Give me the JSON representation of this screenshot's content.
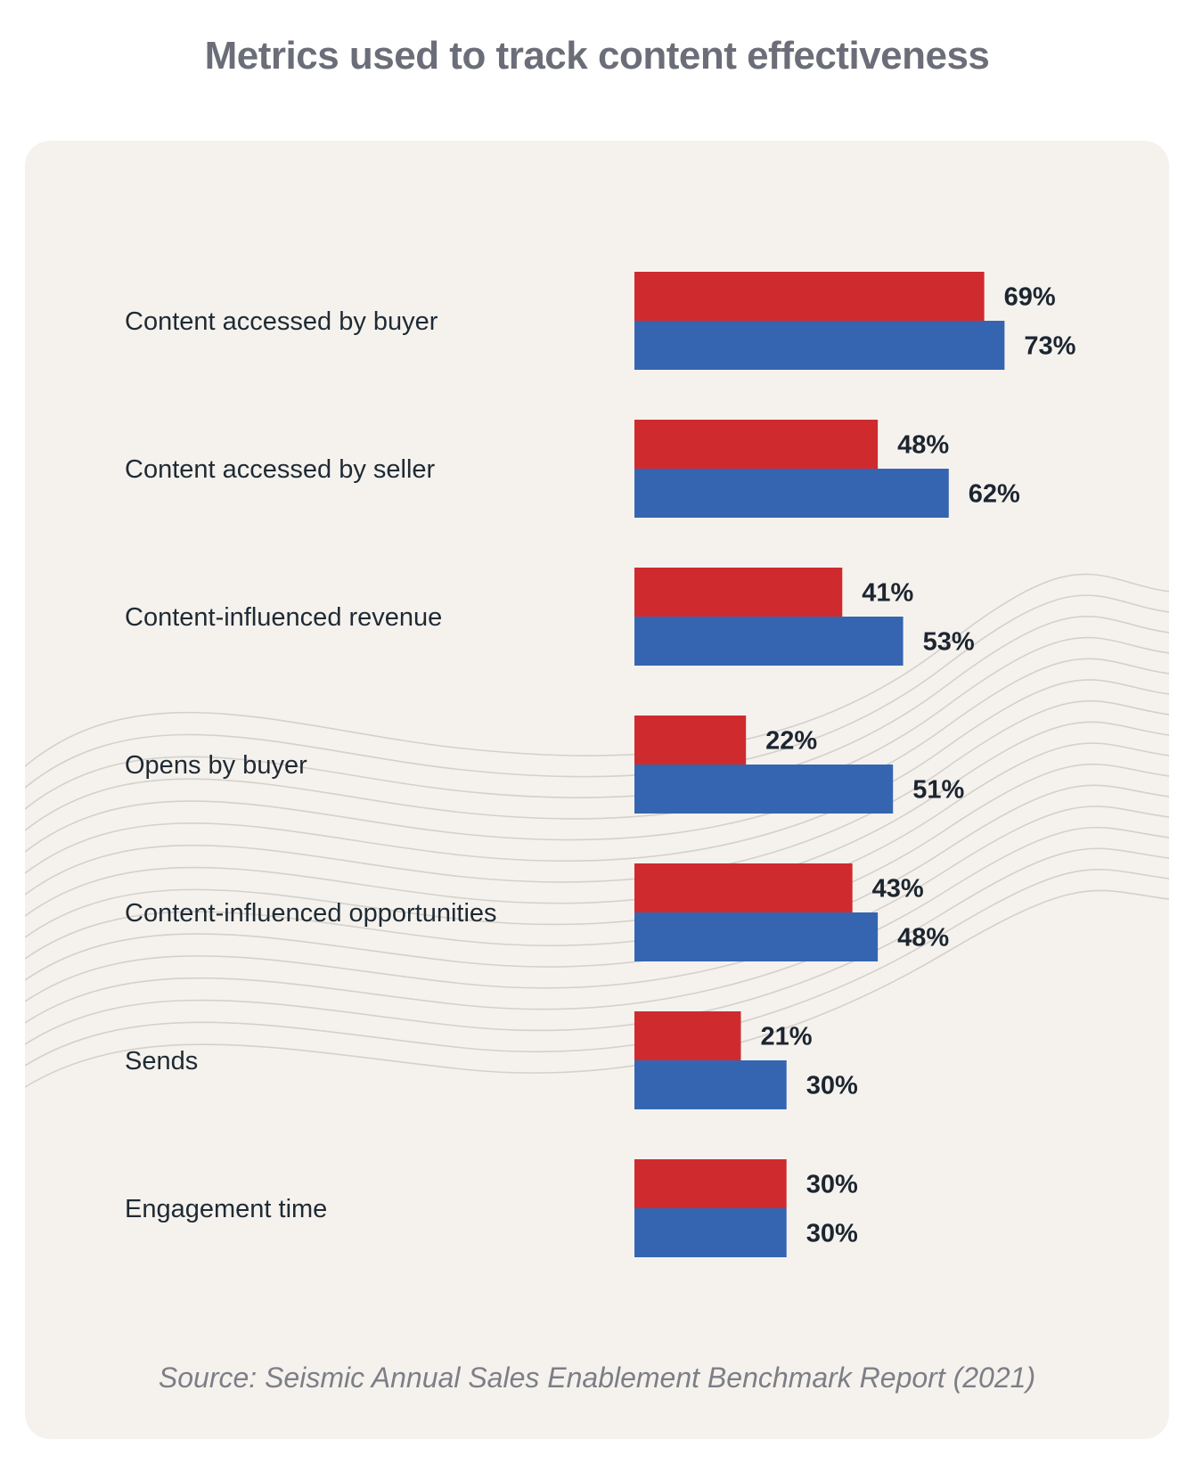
{
  "title": "Metrics used to track content effectiveness",
  "source": "Source: Seismic Annual Sales Enablement Benchmark Report (2021)",
  "colors": {
    "series_a": "#cf2b2f",
    "series_b": "#3565b0",
    "card_background": "#f5f2ee",
    "wave_lines": "#d4d0cc"
  },
  "chart_data": {
    "type": "bar",
    "orientation": "horizontal",
    "categories": [
      "Content accessed by buyer",
      "Content accessed by seller",
      "Content-influenced revenue",
      "Opens by buyer",
      "Content-influenced opportunities",
      "Sends",
      "Engagement time"
    ],
    "series": [
      {
        "color": "#cf2b2f",
        "values": [
          69,
          48,
          41,
          22,
          43,
          21,
          30
        ],
        "labels": [
          "69%",
          "48%",
          "41%",
          "22%",
          "43%",
          "21%",
          "30%"
        ]
      },
      {
        "color": "#3565b0",
        "values": [
          73,
          62,
          53,
          51,
          48,
          30,
          30
        ],
        "labels": [
          "73%",
          "62%",
          "53%",
          "51%",
          "48%",
          "30%",
          "30%"
        ]
      }
    ],
    "xlim": [
      0,
      100
    ],
    "grid": false,
    "legend": "none"
  }
}
